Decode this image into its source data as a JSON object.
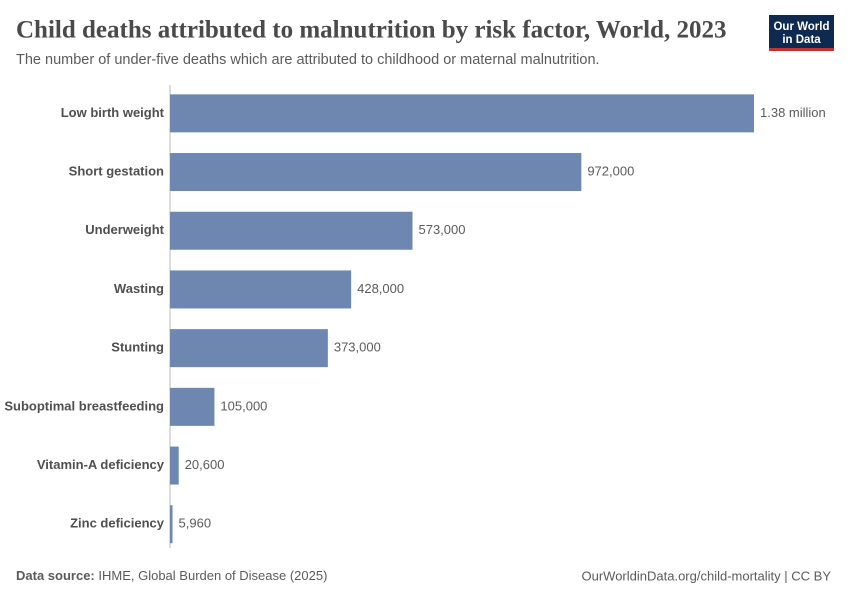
{
  "chart_data": {
    "type": "bar",
    "orientation": "horizontal",
    "title": "Child deaths attributed to malnutrition by risk factor, World, 2023",
    "subtitle": "The number of under-five deaths which are attributed to childhood or maternal malnutrition.",
    "categories": [
      "Low birth weight",
      "Short gestation",
      "Underweight",
      "Wasting",
      "Stunting",
      "Suboptimal breastfeeding",
      "Vitamin-A deficiency",
      "Zinc deficiency"
    ],
    "values": [
      1380000,
      972000,
      573000,
      428000,
      373000,
      105000,
      20600,
      5960
    ],
    "value_labels": [
      "1.38 million",
      "972,000",
      "573,000",
      "428,000",
      "373,000",
      "105,000",
      "20,600",
      "5,960"
    ],
    "color": "#6d87b0",
    "source_label": "Data source:",
    "source": "IHME, Global Burden of Disease (2025)",
    "credit": "OurWorldinData.org/child-mortality | CC BY",
    "logo": [
      "Our World",
      "in Data"
    ]
  }
}
